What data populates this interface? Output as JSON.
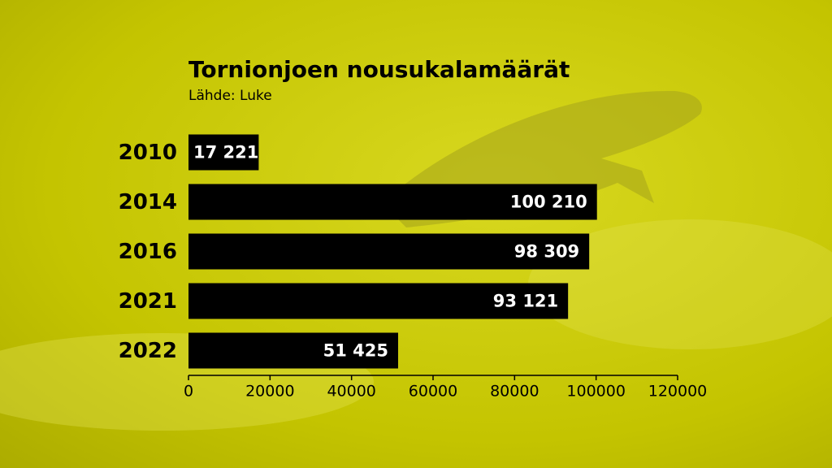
{
  "chart_data": {
    "type": "barh",
    "title": "Tornionjoen nousukalamäärät",
    "subtitle": "Lähde: Luke",
    "categories": [
      "2010",
      "2014",
      "2016",
      "2021",
      "2022"
    ],
    "values": [
      17221,
      100210,
      98309,
      93121,
      51425
    ],
    "value_labels": [
      "17 221",
      "100 210",
      "98 309",
      "93 121",
      "51 425"
    ],
    "color": "#000000",
    "xlim": [
      0,
      120000
    ],
    "xticks": [
      0,
      20000,
      40000,
      60000,
      80000,
      100000,
      120000
    ]
  }
}
